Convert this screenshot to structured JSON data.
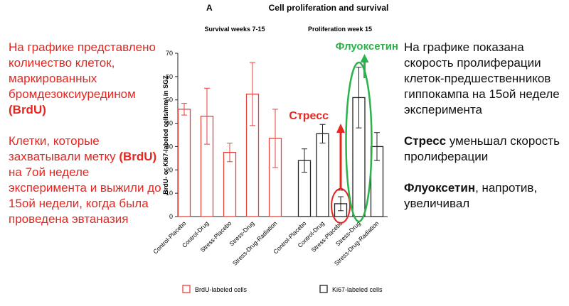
{
  "left_text": {
    "paragraphs": [
      [
        {
          "text": "На графике представлено количество  клеток, маркированных бромдезоксиуредином "
        },
        {
          "text": "(BrdU)",
          "bold": true
        }
      ],
      [
        {
          "text": "Клетки, которые захватывали метку "
        },
        {
          "text": "(BrdU)",
          "bold": true
        },
        {
          "text": " на 7ой неделе эксперимента и выжили до 15ой недели, когда была проведена эвтаназия"
        }
      ]
    ]
  },
  "right_text": {
    "paragraphs": [
      [
        {
          "text": "На графике показана скорость пролиферации клеток-предшественников гиппокампа на 15ой неделе эксперимента"
        }
      ],
      [
        {
          "text": "Стресс",
          "bold": true
        },
        {
          "text": " уменьшал скорость пролиферации"
        }
      ],
      [
        {
          "text": "Флуоксетин",
          "bold": true
        },
        {
          "text": ", напротив, увеличивал"
        }
      ]
    ]
  },
  "annotations": {
    "stress": "Стресс",
    "fluoxetine": "Флуоксетин",
    "significance": "**"
  },
  "chart_data": {
    "type": "bar",
    "panel": "A",
    "title": "Cell proliferation and survival",
    "y_label": "BrdU- or Ki67-labeled cells/mm³ in SGZ",
    "ylim": [
      0,
      70
    ],
    "yticks": [
      0,
      10,
      20,
      30,
      40,
      50,
      60,
      70
    ],
    "series": [
      {
        "name": "BrdU-labeled cells",
        "group_title": "Survival weeks 7-15",
        "color": "#e8413c",
        "categories": [
          "Control-Placebo",
          "Control-Drug",
          "Stress-Placebo",
          "Stress-Drug",
          "Stress-Drug-Radiation"
        ],
        "values": [
          46,
          43,
          27.5,
          52.5,
          33.5
        ],
        "errors": [
          2.5,
          12,
          4,
          13.5,
          12.5
        ]
      },
      {
        "name": "Ki67-labeled cells",
        "group_title": "Proliferation week 15",
        "color": "#222222",
        "categories": [
          "Control-Placebo",
          "Control-Drug",
          "Stress-Placebo",
          "Stress-Drug",
          "Stress-Drug-Radiation"
        ],
        "values": [
          24,
          35.5,
          5.5,
          51,
          30
        ],
        "errors": [
          5,
          4,
          3,
          13,
          6
        ]
      }
    ]
  }
}
